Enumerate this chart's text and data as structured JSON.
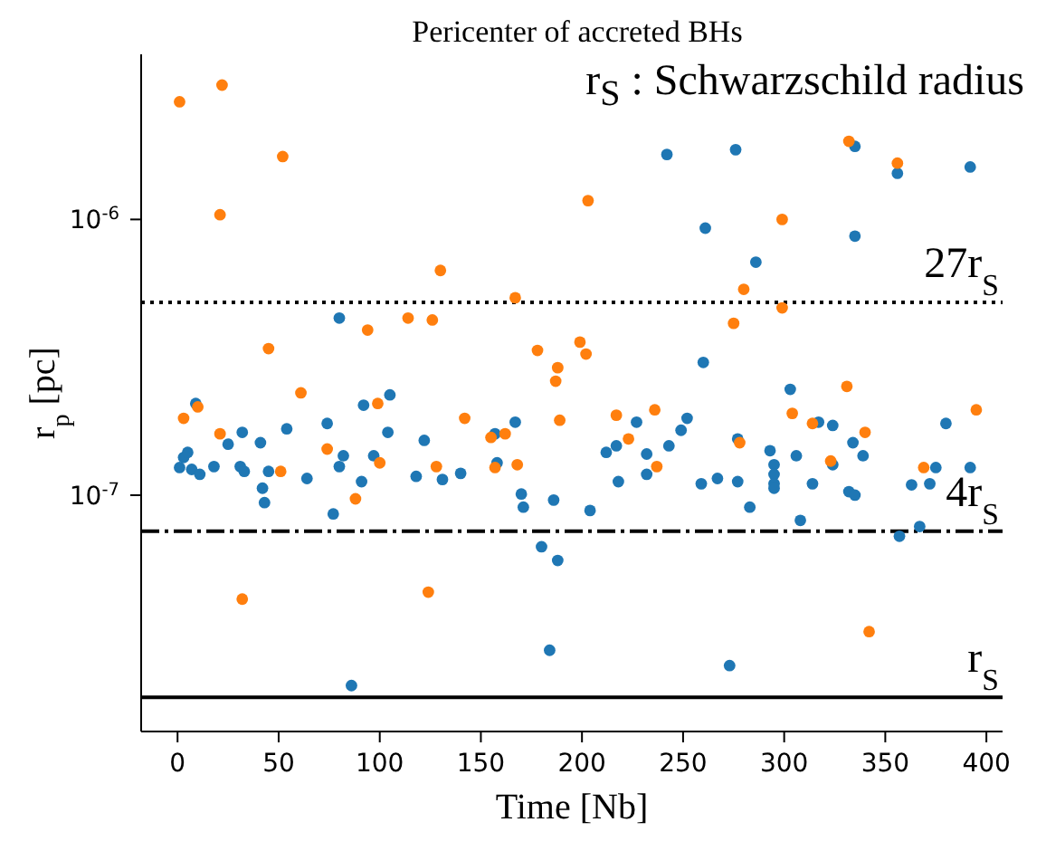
{
  "chart_data": {
    "type": "scatter",
    "title": "Pericenter of accreted BHs",
    "xlabel": "Time [Nb]",
    "ylabel": "r$_{p}$ [pc]",
    "annotations": [
      "r$_{S}$ : Schwarzschild radius"
    ],
    "log": "y",
    "marker": "circle",
    "legend": false,
    "xlim": [
      -18,
      408
    ],
    "xticks": [
      0,
      50,
      100,
      150,
      200,
      250,
      300,
      350,
      400
    ],
    "ylim": [
      1.39e-08,
      3.97e-06
    ],
    "yticks": [
      {
        "value": 1e-07,
        "label": "10$^{-7}$"
      },
      {
        "value": 1e-06,
        "label": "10$^{-6}$"
      }
    ],
    "ref_lines": [
      {
        "axis": "y",
        "value": 5e-07,
        "label": "27r$_{S}$",
        "color": "#000000",
        "line_style": "dotted"
      },
      {
        "axis": "y",
        "value": 7.4e-08,
        "label": "4r$_{S}$",
        "color": "#000000",
        "line_style": "dashdot"
      },
      {
        "axis": "y",
        "value": 1.85e-08,
        "label": "r$_{S}$",
        "color": "#000000",
        "line_style": "solid"
      }
    ],
    "series": [
      {
        "color": "#1f77b4",
        "x": [
          80,
          105,
          242,
          261,
          260,
          276,
          335,
          356,
          392,
          335,
          286,
          303,
          9,
          1,
          3,
          5,
          7,
          11,
          18,
          25,
          32,
          31,
          33,
          41,
          42,
          43,
          45,
          54,
          64,
          74,
          77,
          80,
          82,
          92,
          91,
          97,
          104,
          118,
          122,
          86,
          131,
          140,
          157,
          158,
          167,
          170,
          171,
          186,
          180,
          188,
          184,
          204,
          212,
          217,
          218,
          227,
          232,
          232,
          243,
          249,
          252,
          259,
          267,
          317,
          324,
          277,
          293,
          295,
          295,
          295,
          295,
          306,
          324,
          334,
          339,
          277,
          283,
          314,
          332,
          335,
          308,
          357,
          367,
          363,
          372,
          375,
          380,
          392,
          273
        ],
        "values": [
          4.39e-07,
          2.31e-07,
          1.72e-06,
          9.3e-07,
          3.03e-07,
          1.79e-06,
          1.84e-06,
          1.47e-06,
          1.55e-06,
          8.7e-07,
          7e-07,
          2.42e-07,
          2.15e-07,
          1.26e-07,
          1.37e-07,
          1.43e-07,
          1.24e-07,
          1.19e-07,
          1.27e-07,
          1.53e-07,
          1.69e-07,
          1.27e-07,
          1.22e-07,
          1.55e-07,
          1.06e-07,
          9.4e-08,
          1.22e-07,
          1.74e-07,
          1.15e-07,
          1.82e-07,
          8.55e-08,
          1.27e-07,
          1.39e-07,
          2.12e-07,
          1.12e-07,
          1.39e-07,
          1.69e-07,
          1.17e-07,
          1.58e-07,
          2.04e-08,
          1.14e-07,
          1.2e-07,
          1.67e-07,
          1.31e-07,
          1.84e-07,
          1.01e-07,
          9.05e-08,
          9.6e-08,
          6.5e-08,
          5.8e-08,
          2.74e-08,
          8.8e-08,
          1.43e-07,
          1.51e-07,
          1.12e-07,
          1.84e-07,
          1.41e-07,
          1.19e-07,
          1.51e-07,
          1.72e-07,
          1.9e-07,
          1.1e-07,
          1.15e-07,
          1.84e-07,
          1.79e-07,
          1.6e-07,
          1.45e-07,
          1.29e-07,
          1.19e-07,
          1.1e-07,
          1.06e-07,
          1.39e-07,
          1.29e-07,
          1.55e-07,
          1.39e-07,
          1.12e-07,
          9.05e-08,
          1.1e-07,
          1.03e-07,
          1e-07,
          8.1e-08,
          7.1e-08,
          7.7e-08,
          1.09e-07,
          1.1e-07,
          1.26e-07,
          1.82e-07,
          1.26e-07,
          2.41e-08
        ]
      },
      {
        "color": "#ff7f0e",
        "x": [
          1,
          22,
          21,
          52,
          45,
          94,
          114,
          126,
          61,
          130,
          203,
          167,
          178,
          188,
          187,
          199,
          202,
          332,
          356,
          299,
          280,
          299,
          275,
          331,
          3,
          10,
          21,
          74,
          51,
          99,
          100,
          88,
          32,
          124,
          128,
          142,
          155,
          162,
          157,
          168,
          189,
          217,
          223,
          236,
          237,
          304,
          314,
          278,
          323,
          340,
          369,
          395,
          342
        ],
        "values": [
          2.67e-06,
          3.07e-06,
          1.04e-06,
          1.69e-06,
          3.4e-07,
          3.97e-07,
          4.39e-07,
          4.32e-07,
          2.35e-07,
          6.53e-07,
          1.17e-06,
          5.2e-07,
          3.35e-07,
          2.9e-07,
          2.59e-07,
          3.59e-07,
          3.25e-07,
          1.92e-06,
          1.6e-06,
          1e-06,
          5.58e-07,
          4.78e-07,
          4.2e-07,
          2.48e-07,
          1.9e-07,
          2.09e-07,
          1.67e-07,
          1.47e-07,
          1.22e-07,
          2.15e-07,
          1.31e-07,
          9.7e-08,
          4.2e-08,
          4.45e-08,
          1.27e-07,
          1.9e-07,
          1.62e-07,
          1.67e-07,
          1.26e-07,
          1.29e-07,
          1.87e-07,
          1.95e-07,
          1.6e-07,
          2.04e-07,
          1.27e-07,
          1.98e-07,
          1.82e-07,
          1.55e-07,
          1.33e-07,
          1.69e-07,
          1.26e-07,
          2.04e-07,
          3.2e-08
        ]
      }
    ]
  }
}
